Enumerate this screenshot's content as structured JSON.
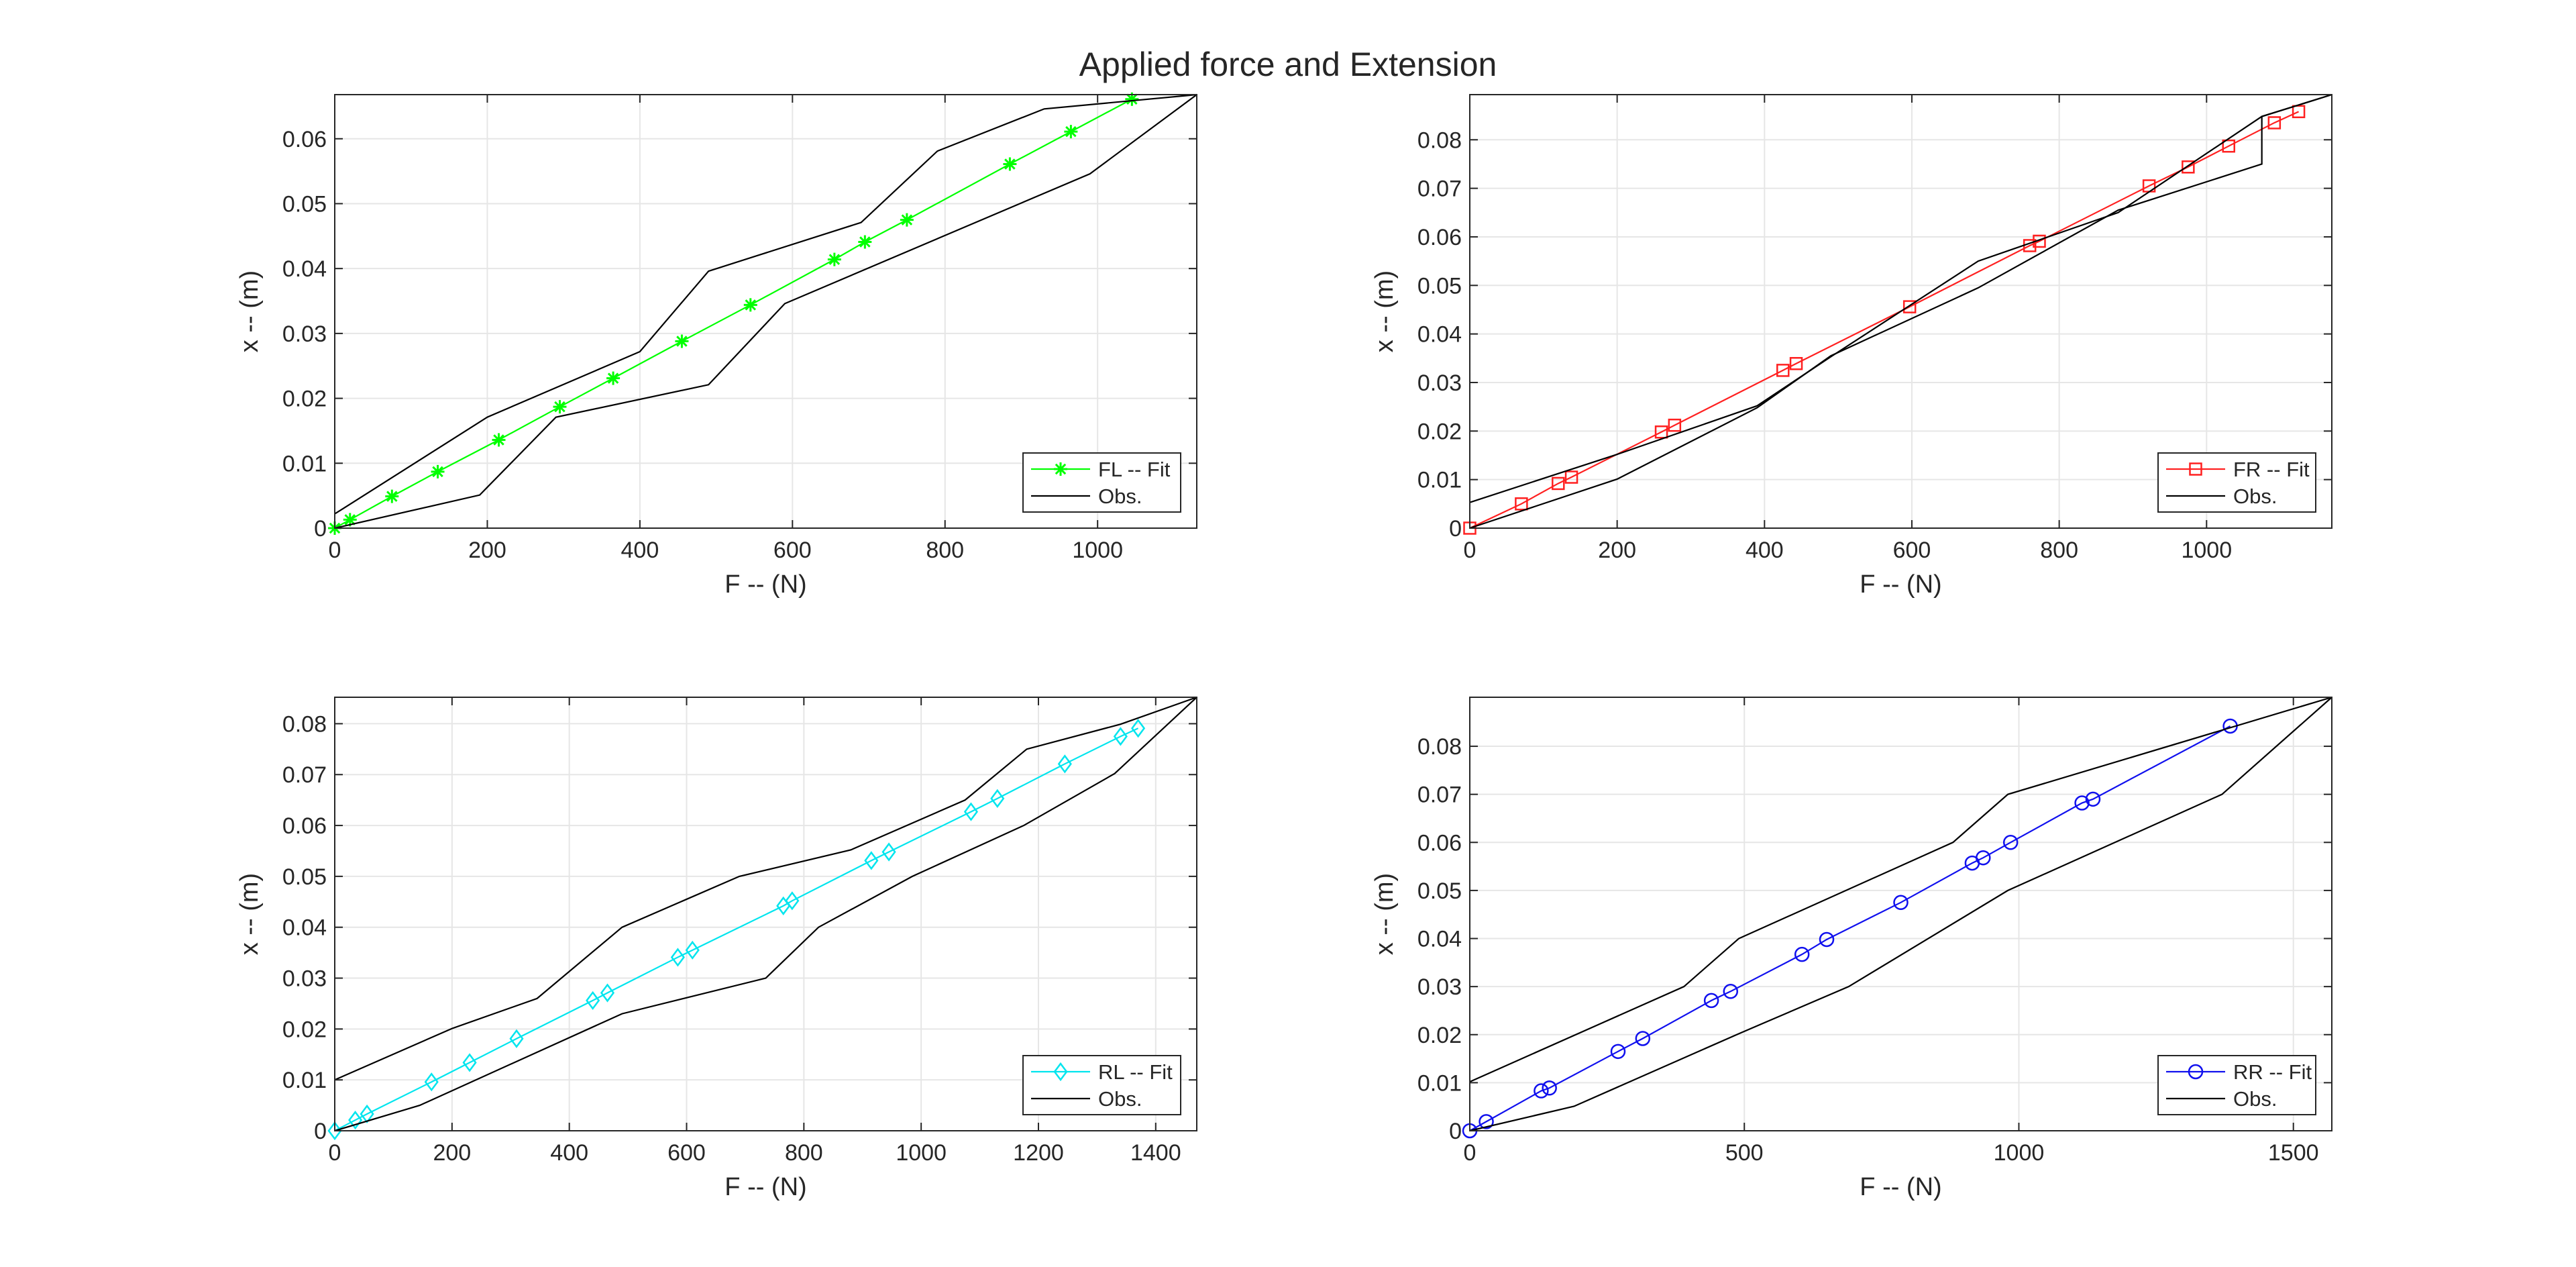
{
  "figure": {
    "title": "Applied force and Extension"
  },
  "chart_data": [
    {
      "type": "line",
      "xlabel": "F -- (N)",
      "ylabel": "x -- (m)",
      "xlim": [
        0,
        1130
      ],
      "ylim": [
        0,
        0.0668
      ],
      "xticks": [
        0,
        200,
        400,
        600,
        800,
        1000
      ],
      "xtick_labels": [
        "0",
        "200",
        "400",
        "600",
        "800",
        "1000"
      ],
      "yticks": [
        0,
        0.01,
        0.02,
        0.03,
        0.04,
        0.05,
        0.06
      ],
      "ytick_labels": [
        "0",
        "0.01",
        "0.02",
        "0.03",
        "0.04",
        "0.05",
        "0.06"
      ],
      "grid": true,
      "legend_position": "bottom-right",
      "series": [
        {
          "name": "FL -- Fit",
          "color": "#00ff00",
          "marker": "asterisk",
          "x": [
            0,
            20,
            75,
            135,
            215,
            295,
            365,
            455,
            545,
            655,
            695,
            750,
            885,
            965,
            1045
          ],
          "y": [
            0,
            0.0013,
            0.0049,
            0.0087,
            0.0136,
            0.0187,
            0.0231,
            0.0288,
            0.0344,
            0.0414,
            0.0441,
            0.0475,
            0.0561,
            0.0611,
            0.0661
          ]
        },
        {
          "name": "Obs.",
          "color": "#000000",
          "marker": "none",
          "lines": [
            {
              "x": [
                0,
                200,
                400,
                490,
                690,
                790,
                930,
                1130
              ],
              "y": [
                0.0022,
                0.0171,
                0.0272,
                0.0396,
                0.0471,
                0.0581,
                0.0646,
                0.0668
              ]
            },
            {
              "x": [
                0,
                190,
                290,
                490,
                590,
                990,
                1130
              ],
              "y": [
                0,
                0.0051,
                0.0171,
                0.0221,
                0.0346,
                0.0546,
                0.0668
              ]
            }
          ]
        }
      ]
    },
    {
      "type": "line",
      "xlabel": "F -- (N)",
      "ylabel": "x -- (m)",
      "xlim": [
        0,
        1170
      ],
      "ylim": [
        0,
        0.0893
      ],
      "xticks": [
        0,
        200,
        400,
        600,
        800,
        1000
      ],
      "xtick_labels": [
        "0",
        "200",
        "400",
        "600",
        "800",
        "1000"
      ],
      "yticks": [
        0,
        0.01,
        0.02,
        0.03,
        0.04,
        0.05,
        0.06,
        0.07,
        0.08
      ],
      "ytick_labels": [
        "0",
        "0.01",
        "0.02",
        "0.03",
        "0.04",
        "0.05",
        "0.06",
        "0.07",
        "0.08"
      ],
      "grid": true,
      "legend_position": "bottom-right",
      "series": [
        {
          "name": "FR -- Fit",
          "color": "#ff2020",
          "marker": "square",
          "x": [
            0,
            70,
            120,
            138,
            260,
            278,
            425,
            443,
            597,
            760,
            773,
            922,
            975,
            1030,
            1092,
            1125
          ],
          "y": [
            0,
            0.005,
            0.0092,
            0.0105,
            0.0198,
            0.0212,
            0.0325,
            0.0339,
            0.0456,
            0.0582,
            0.0591,
            0.0705,
            0.0744,
            0.0787,
            0.0835,
            0.0858
          ]
        },
        {
          "name": "Obs.",
          "color": "#000000",
          "marker": "none",
          "lines": [
            {
              "x": [
                0,
                200,
                390,
                490,
                690,
                880,
                1075,
                1170
              ],
              "y": [
                0.0053,
                0.0152,
                0.0252,
                0.0353,
                0.055,
                0.065,
                0.0848,
                0.0893
              ]
            },
            {
              "x": [
                0,
                200,
                390,
                490,
                690,
                880,
                1075,
                1075,
                1170
              ],
              "y": [
                0,
                0.0101,
                0.0248,
                0.0355,
                0.0495,
                0.0655,
                0.075,
                0.0848,
                0.0893
              ]
            }
          ]
        }
      ]
    },
    {
      "type": "line",
      "xlabel": "F -- (N)",
      "ylabel": "x -- (m)",
      "xlim": [
        0,
        1470
      ],
      "ylim": [
        0,
        0.0852
      ],
      "xticks": [
        0,
        200,
        400,
        600,
        800,
        1000,
        1200,
        1400
      ],
      "xtick_labels": [
        "0",
        "200",
        "400",
        "600",
        "800",
        "1000",
        "1200",
        "1400"
      ],
      "yticks": [
        0,
        0.01,
        0.02,
        0.03,
        0.04,
        0.05,
        0.06,
        0.07,
        0.08
      ],
      "ytick_labels": [
        "0",
        "0.01",
        "0.02",
        "0.03",
        "0.04",
        "0.05",
        "0.06",
        "0.07",
        "0.08"
      ],
      "grid": true,
      "legend_position": "bottom-right",
      "series": [
        {
          "name": "RL -- Fit",
          "color": "#00e5ee",
          "marker": "diamond",
          "x": [
            0,
            35,
            55,
            165,
            230,
            310,
            440,
            465,
            585,
            610,
            765,
            780,
            915,
            945,
            1085,
            1130,
            1245,
            1340,
            1370
          ],
          "y": [
            0,
            0.0021,
            0.0033,
            0.0096,
            0.0134,
            0.0181,
            0.0256,
            0.0271,
            0.0341,
            0.0355,
            0.0442,
            0.0452,
            0.0531,
            0.0548,
            0.0627,
            0.0653,
            0.0721,
            0.0775,
            0.0791
          ]
        },
        {
          "name": "Obs.",
          "color": "#000000",
          "marker": "none",
          "lines": [
            {
              "x": [
                0,
                200,
                345,
                490,
                690,
                880,
                1075,
                1180,
                1340,
                1470
              ],
              "y": [
                0.01,
                0.0201,
                0.026,
                0.04,
                0.05,
                0.0552,
                0.065,
                0.075,
                0.0799,
                0.0852
              ]
            },
            {
              "x": [
                0,
                145,
                490,
                735,
                825,
                985,
                1175,
                1330,
                1470
              ],
              "y": [
                0,
                0.005,
                0.023,
                0.03,
                0.04,
                0.05,
                0.06,
                0.0702,
                0.0852
              ]
            }
          ]
        }
      ]
    },
    {
      "type": "line",
      "xlabel": "F -- (N)",
      "ylabel": "x -- (m)",
      "xlim": [
        0,
        1570
      ],
      "ylim": [
        0,
        0.0902
      ],
      "xticks": [
        0,
        500,
        1000,
        1500
      ],
      "xtick_labels": [
        "0",
        "500",
        "1000",
        "1500"
      ],
      "yticks": [
        0,
        0.01,
        0.02,
        0.03,
        0.04,
        0.05,
        0.06,
        0.07,
        0.08
      ],
      "ytick_labels": [
        "0",
        "0.01",
        "0.02",
        "0.03",
        "0.04",
        "0.05",
        "0.06",
        "0.07",
        "0.08"
      ],
      "grid": true,
      "legend_position": "bottom-right",
      "series": [
        {
          "name": "RR -- Fit",
          "color": "#1010ee",
          "marker": "circle",
          "x": [
            0,
            30,
            130,
            145,
            270,
            315,
            440,
            475,
            605,
            650,
            785,
            915,
            935,
            985,
            1115,
            1135,
            1385
          ],
          "y": [
            0,
            0.0019,
            0.0083,
            0.0089,
            0.0165,
            0.0192,
            0.0271,
            0.029,
            0.0367,
            0.0398,
            0.0475,
            0.0557,
            0.0568,
            0.06,
            0.0682,
            0.069,
            0.0842
          ]
        },
        {
          "name": "Obs.",
          "color": "#000000",
          "marker": "none",
          "lines": [
            {
              "x": [
                0,
                390,
                490,
                880,
                980,
                1570
              ],
              "y": [
                0.0102,
                0.03,
                0.04,
                0.06,
                0.07,
                0.0902
              ]
            },
            {
              "x": [
                0,
                190,
                490,
                690,
                980,
                1370,
                1570
              ],
              "y": [
                0,
                0.0051,
                0.0202,
                0.03,
                0.05,
                0.07,
                0.0902
              ]
            }
          ]
        }
      ]
    }
  ]
}
